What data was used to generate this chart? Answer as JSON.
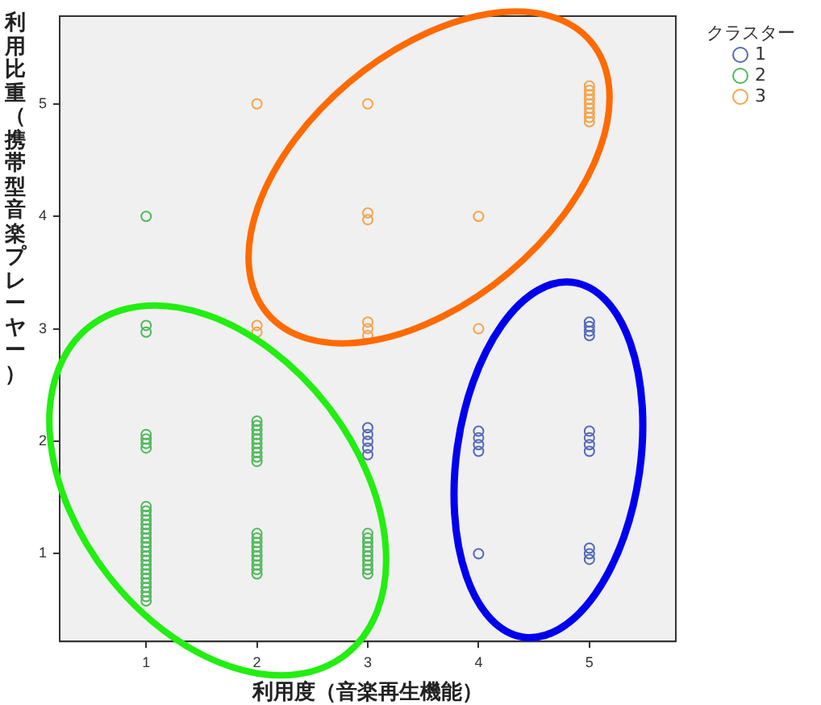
{
  "chart_data": {
    "type": "scatter",
    "xlabel": "利用度（音楽再生機能）",
    "ylabel": "利用比重（携帯型音楽プレーヤー）",
    "legend_title": "クラスター",
    "legend": "top right",
    "grid": false,
    "marker": "circle",
    "xlim": [
      0.22,
      5.78
    ],
    "ylim": [
      0.22,
      5.78
    ],
    "xticks": [
      1,
      2,
      3,
      4,
      5
    ],
    "yticks": [
      1,
      2,
      3,
      4,
      5
    ],
    "series": [
      {
        "name": "1",
        "color": "#5468b9",
        "x": [
          3,
          3,
          3,
          3,
          3,
          4,
          4,
          4,
          4,
          5,
          5,
          5,
          5,
          4,
          5,
          5,
          5,
          5,
          5,
          5,
          5
        ],
        "values": [
          2.12,
          2.06,
          2.0,
          1.94,
          1.88,
          2.09,
          2.03,
          1.97,
          1.91,
          2.09,
          2.03,
          1.97,
          1.91,
          1,
          1.05,
          1.0,
          0.95,
          3.06,
          3.02,
          2.98,
          2.94
        ]
      },
      {
        "name": "2",
        "color": "#4eb85a",
        "x": [
          1,
          1,
          1,
          1,
          1,
          1,
          1,
          1,
          1,
          1,
          1,
          1,
          1,
          1,
          1,
          1,
          1,
          1,
          1,
          1,
          1,
          1,
          1,
          1,
          1,
          1,
          1,
          1,
          1,
          2,
          2,
          2,
          2,
          2,
          2,
          2,
          2,
          2,
          2,
          2,
          2,
          2,
          2,
          2,
          2,
          2,
          2,
          2,
          2,
          3,
          3,
          3,
          3,
          3,
          3,
          3,
          3,
          3,
          3
        ],
        "values": [
          1.42,
          1.38,
          1.34,
          1.3,
          1.26,
          1.22,
          1.18,
          1.14,
          1.1,
          1.06,
          1.02,
          0.98,
          0.94,
          0.9,
          0.86,
          0.82,
          0.78,
          0.74,
          0.7,
          0.66,
          0.62,
          0.58,
          2.06,
          2.02,
          1.98,
          1.94,
          3.03,
          2.97,
          4,
          2.18,
          2.14,
          2.1,
          2.06,
          2.02,
          1.98,
          1.94,
          1.9,
          1.86,
          1.82,
          1.18,
          1.14,
          1.1,
          1.06,
          1.02,
          0.98,
          0.94,
          0.9,
          0.86,
          0.82,
          1.18,
          1.14,
          1.1,
          1.06,
          1.02,
          0.98,
          0.94,
          0.9,
          0.86,
          0.82
        ]
      },
      {
        "name": "3",
        "color": "#f4a34a",
        "x": [
          2,
          3,
          3,
          3,
          4,
          5,
          5,
          5,
          5,
          5,
          5,
          5,
          5,
          5,
          2,
          2,
          3,
          3,
          3,
          4
        ],
        "values": [
          5,
          5,
          4.03,
          3.97,
          4,
          5.16,
          5.12,
          5.08,
          5.04,
          5.0,
          4.96,
          4.92,
          4.88,
          4.84,
          3.03,
          2.97,
          3.06,
          3.0,
          2.94,
          3
        ]
      }
    ]
  }
}
